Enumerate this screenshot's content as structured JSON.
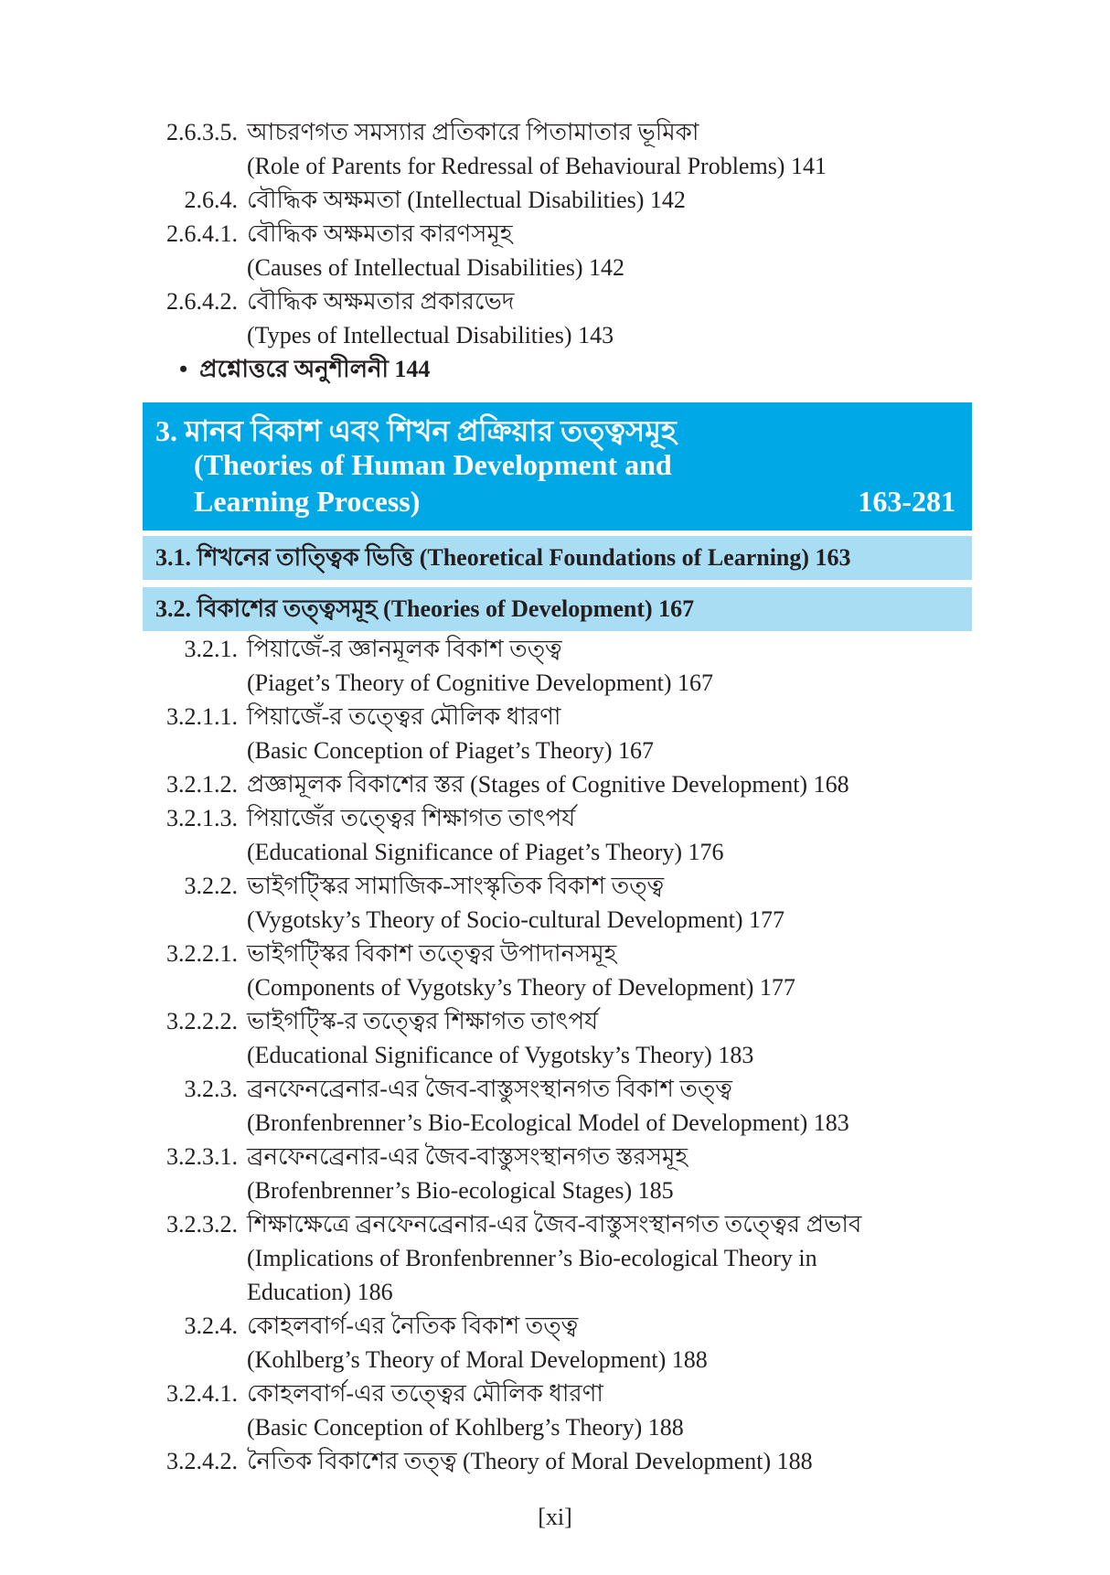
{
  "top_entries": [
    {
      "num": "2.6.3.5.",
      "lines": [
        "আচরণগত সমস্যার প্রতিকারে পিতামাতার ভূমিকা",
        "(Role of Parents for Redressal of Behavioural Problems) 141"
      ]
    },
    {
      "num": "2.6.4.",
      "lines": [
        "বৌদ্ধিক অক্ষমতা (Intellectual Disabilities) 142"
      ]
    },
    {
      "num": "2.6.4.1.",
      "lines": [
        "বৌদ্ধিক অক্ষমতার কারণসমূহ",
        "(Causes of Intellectual Disabilities) 142"
      ]
    },
    {
      "num": "2.6.4.2.",
      "lines": [
        "বৌদ্ধিক অক্ষমতার প্রকারভেদ",
        "(Types of Intellectual Disabilities) 143"
      ]
    }
  ],
  "bullet": {
    "symbol": "•",
    "text": "প্রশ্নোত্তরে অনুশীলনী 144"
  },
  "chapter": {
    "title_bn": "3. মানব বিকাশ এবং শিখন প্রক্রিয়ার তত্ত্বসমূহ",
    "title_en_1": "(Theories of Human Development and",
    "title_en_2": "Learning Process)",
    "pages": "163-281",
    "color": "#00a9e6"
  },
  "sections": [
    {
      "text": "3.1.  শিখনের তাত্ত্বিক ভিত্তি (Theoretical Foundations of Learning) 163",
      "color": "#a9ddf4"
    },
    {
      "text": "3.2.  বিকাশের তত্ত্বসমূহ (Theories of Development) 167",
      "color": "#a9ddf4"
    }
  ],
  "entries": [
    {
      "num": "3.2.1.",
      "lines": [
        "পিয়াজেঁ-র জ্ঞানমূলক বিকাশ তত্ত্ব",
        "(Piaget’s Theory of Cognitive Development) 167"
      ]
    },
    {
      "num": "3.2.1.1.",
      "lines": [
        "পিয়াজেঁ-র তত্ত্বের মৌলিক ধারণা",
        "(Basic Conception of Piaget’s Theory) 167"
      ]
    },
    {
      "num": "3.2.1.2.",
      "lines": [
        "প্রজ্ঞামূলক বিকাশের স্তর (Stages of Cognitive Development) 168"
      ]
    },
    {
      "num": "3.2.1.3.",
      "lines": [
        "পিয়াজেঁর তত্ত্বের শিক্ষাগত তাৎপর্য",
        "(Educational Significance of Piaget’s Theory) 176"
      ]
    },
    {
      "num": "3.2.2.",
      "lines": [
        "ভাইগট্স্কির সামাজিক-সাংস্কৃতিক বিকাশ তত্ত্ব",
        "(Vygotsky’s Theory of Socio-cultural Development) 177"
      ]
    },
    {
      "num": "3.2.2.1.",
      "lines": [
        "ভাইগট্স্কির বিকাশ তত্ত্বের উপাদানসমূহ",
        "(Components of Vygotsky’s Theory of Development) 177"
      ]
    },
    {
      "num": "3.2.2.2.",
      "lines": [
        "ভাইগট্স্কি-র তত্ত্বের শিক্ষাগত তাৎপর্য",
        "(Educational Significance of Vygotsky’s Theory) 183"
      ]
    },
    {
      "num": "3.2.3.",
      "lines": [
        "ব্রনফেনব্রেনার-এর জৈব-বাস্তুসংস্থানগত বিকাশ তত্ত্ব",
        "(Bronfenbrenner’s Bio-Ecological Model of Development) 183"
      ]
    },
    {
      "num": "3.2.3.1.",
      "lines": [
        "ব্রনফেনব্রেনার-এর জৈব-বাস্তুসংস্থানগত স্তরসমূহ",
        "(Brofenbrenner’s Bio-ecological Stages) 185"
      ]
    },
    {
      "num": "3.2.3.2.",
      "lines": [
        "শিক্ষাক্ষেত্রে ব্রনফেনব্রেনার-এর জৈব-বাস্তুসংস্থানগত তত্ত্বের প্রভাব",
        "(Implications of Bronfenbrenner’s Bio-ecological Theory in",
        "Education) 186"
      ]
    },
    {
      "num": "3.2.4.",
      "lines": [
        "কোহলবার্গ-এর নৈতিক বিকাশ তত্ত্ব",
        "(Kohlberg’s Theory of Moral Development) 188"
      ]
    },
    {
      "num": "3.2.4.1.",
      "lines": [
        "কোহলবার্গ-এর তত্ত্বের মৌলিক ধারণা",
        "(Basic Conception of Kohlberg’s Theory) 188"
      ]
    },
    {
      "num": "3.2.4.2.",
      "lines": [
        "নৈতিক বিকাশের তত্ত্ব (Theory of Moral Development) 188"
      ]
    }
  ],
  "footer": {
    "page_number": "[xi]"
  }
}
